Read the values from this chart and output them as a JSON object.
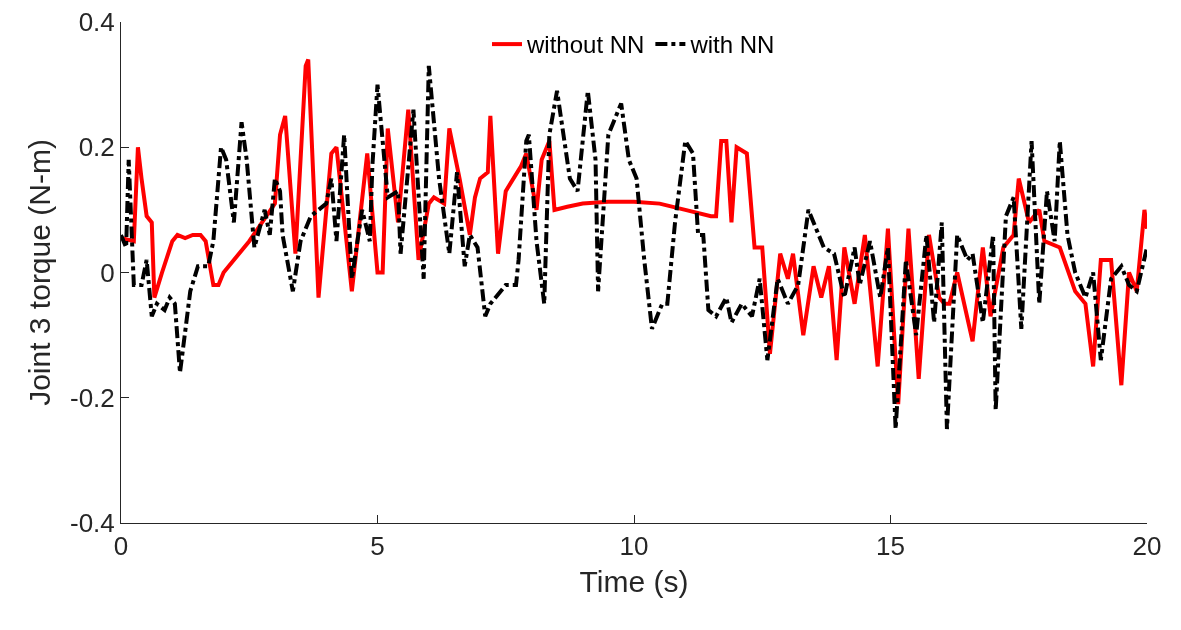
{
  "chart_data": {
    "type": "line",
    "xlabel": "Time (s)",
    "ylabel": "Joint 3 torque (N-m)",
    "xlim": [
      0,
      20
    ],
    "xticks": [
      0,
      5,
      10,
      15,
      20
    ],
    "ylim": [
      -0.4,
      0.4
    ],
    "yticks": [
      -0.4,
      -0.2,
      0,
      0.2,
      0.4
    ],
    "grid": false,
    "legend": "top",
    "marker": "none",
    "series": [
      {
        "name": "without NN",
        "color": "#ff0000",
        "line_style": "solid",
        "x": [
          0,
          0.25,
          0.33,
          0.4,
          0.5,
          0.6,
          0.65,
          0.8,
          1.0,
          1.1,
          1.25,
          1.4,
          1.55,
          1.65,
          1.8,
          1.9,
          2.0,
          2.5,
          3.0,
          3.1,
          3.2,
          3.4,
          3.6,
          3.65,
          3.85,
          4.1,
          4.2,
          4.5,
          4.8,
          5.0,
          5.1,
          5.2,
          5.4,
          5.6,
          5.8,
          6.0,
          6.1,
          6.3,
          6.4,
          6.6,
          6.8,
          6.9,
          7.0,
          7.15,
          7.2,
          7.35,
          7.5,
          7.8,
          7.9,
          8.1,
          8.2,
          8.35,
          8.45,
          8.7,
          9.0,
          9.5,
          10.0,
          10.5,
          11.0,
          11.5,
          11.6,
          11.7,
          11.8,
          11.9,
          12.0,
          12.2,
          12.35,
          12.5,
          12.65,
          12.85,
          13.0,
          13.1,
          13.3,
          13.5,
          13.65,
          13.8,
          13.95,
          14.1,
          14.3,
          14.5,
          14.75,
          14.95,
          15.15,
          15.35,
          15.55,
          15.75,
          15.95,
          16.05,
          16.15,
          16.3,
          16.6,
          16.8,
          16.95,
          17.2,
          17.4,
          17.5,
          17.7,
          17.9,
          18.0,
          18.3,
          18.6,
          18.8,
          18.95,
          19.1,
          19.3,
          19.5,
          19.65,
          19.8,
          19.95,
          20
        ],
        "values": [
          0.055,
          0.05,
          0.2,
          0.15,
          0.09,
          0.08,
          -0.04,
          0.0,
          0.05,
          0.06,
          0.055,
          0.06,
          0.06,
          0.05,
          -0.02,
          -0.02,
          0.0,
          0.05,
          0.11,
          0.22,
          0.25,
          0.03,
          0.33,
          0.34,
          -0.04,
          0.19,
          0.2,
          -0.03,
          0.19,
          0.0,
          0.0,
          0.23,
          0.08,
          0.26,
          0.02,
          0.11,
          0.12,
          0.11,
          0.23,
          0.15,
          0.06,
          0.12,
          0.15,
          0.16,
          0.25,
          0.03,
          0.13,
          0.17,
          0.19,
          0.1,
          0.18,
          0.21,
          0.1,
          0.105,
          0.11,
          0.113,
          0.113,
          0.11,
          0.1,
          0.09,
          0.09,
          0.21,
          0.21,
          0.08,
          0.2,
          0.19,
          0.04,
          0.04,
          -0.13,
          0.03,
          -0.01,
          0.03,
          -0.1,
          0.01,
          -0.04,
          0.01,
          -0.14,
          0.04,
          -0.05,
          0.06,
          -0.15,
          0.07,
          -0.21,
          0.07,
          -0.17,
          0.06,
          -0.04,
          -0.05,
          -0.05,
          0.0,
          -0.11,
          0.04,
          -0.07,
          0.04,
          0.06,
          0.15,
          0.08,
          0.1,
          0.05,
          0.04,
          -0.03,
          -0.05,
          -0.15,
          0.02,
          0.02,
          -0.18,
          0.0,
          -0.03,
          0.1,
          0.07
        ]
      },
      {
        "name": "with NN",
        "color": "#000000",
        "line_style": "dashdot",
        "x": [
          0,
          0.1,
          0.15,
          0.25,
          0.4,
          0.5,
          0.6,
          0.7,
          0.85,
          0.95,
          1.05,
          1.15,
          1.35,
          1.5,
          1.7,
          1.8,
          1.95,
          2.05,
          2.2,
          2.35,
          2.45,
          2.6,
          2.8,
          2.9,
          3.0,
          3.1,
          3.15,
          3.35,
          3.5,
          3.7,
          4.0,
          4.1,
          4.2,
          4.35,
          4.5,
          4.7,
          4.85,
          4.9,
          5.0,
          5.2,
          5.4,
          5.45,
          5.7,
          5.9,
          6.0,
          6.2,
          6.4,
          6.55,
          6.7,
          6.8,
          6.95,
          7.1,
          7.2,
          7.5,
          7.7,
          7.75,
          7.9,
          7.95,
          8.1,
          8.25,
          8.35,
          8.5,
          8.75,
          8.9,
          9.1,
          9.25,
          9.3,
          9.5,
          9.75,
          9.9,
          10.05,
          10.2,
          10.35,
          10.55,
          10.65,
          10.8,
          11.0,
          11.15,
          11.25,
          11.35,
          11.45,
          11.6,
          11.8,
          11.9,
          12.1,
          12.3,
          12.45,
          12.6,
          12.8,
          13.0,
          13.2,
          13.4,
          13.55,
          13.7,
          13.9,
          14.1,
          14.3,
          14.4,
          14.6,
          14.8,
          14.95,
          15.1,
          15.3,
          15.5,
          15.7,
          15.85,
          16.0,
          16.1,
          16.3,
          16.5,
          16.6,
          16.8,
          17.0,
          17.05,
          17.25,
          17.4,
          17.55,
          17.75,
          17.9,
          18.05,
          18.2,
          18.3,
          18.45,
          18.6,
          18.8,
          18.95,
          19.1,
          19.3,
          19.5,
          19.65,
          19.8,
          20
        ],
        "values": [
          0.06,
          0.04,
          0.18,
          -0.02,
          -0.02,
          0.02,
          -0.07,
          -0.05,
          -0.06,
          -0.04,
          -0.05,
          -0.16,
          -0.03,
          0.01,
          0.01,
          0.05,
          0.2,
          0.18,
          0.08,
          0.24,
          0.18,
          0.04,
          0.1,
          0.06,
          0.15,
          0.13,
          0.06,
          -0.03,
          0.05,
          0.09,
          0.11,
          0.15,
          0.05,
          0.22,
          -0.01,
          0.1,
          0.05,
          0.17,
          0.3,
          0.12,
          0.13,
          0.03,
          0.26,
          -0.01,
          0.33,
          0.15,
          0.03,
          0.16,
          0.01,
          0.06,
          0.04,
          -0.07,
          -0.05,
          -0.02,
          -0.02,
          0.02,
          0.21,
          0.22,
          0.05,
          -0.05,
          0.22,
          0.29,
          0.15,
          0.13,
          0.29,
          0.18,
          -0.03,
          0.22,
          0.27,
          0.18,
          0.15,
          0.02,
          -0.09,
          -0.05,
          -0.05,
          0.08,
          0.21,
          0.19,
          0.06,
          0.06,
          -0.06,
          -0.07,
          -0.04,
          -0.08,
          -0.05,
          -0.07,
          -0.01,
          -0.14,
          -0.01,
          -0.05,
          -0.02,
          0.1,
          0.07,
          0.04,
          0.03,
          -0.04,
          0.04,
          -0.02,
          0.05,
          -0.04,
          0.04,
          -0.25,
          0.02,
          -0.1,
          0.06,
          -0.08,
          0.08,
          -0.25,
          0.06,
          0.02,
          0.03,
          -0.08,
          0.06,
          -0.22,
          0.09,
          0.12,
          -0.09,
          0.21,
          -0.05,
          0.13,
          0.05,
          0.21,
          0.06,
          0.0,
          -0.04,
          0.0,
          -0.14,
          -0.01,
          0.01,
          -0.02,
          -0.03,
          0.04
        ]
      }
    ]
  }
}
